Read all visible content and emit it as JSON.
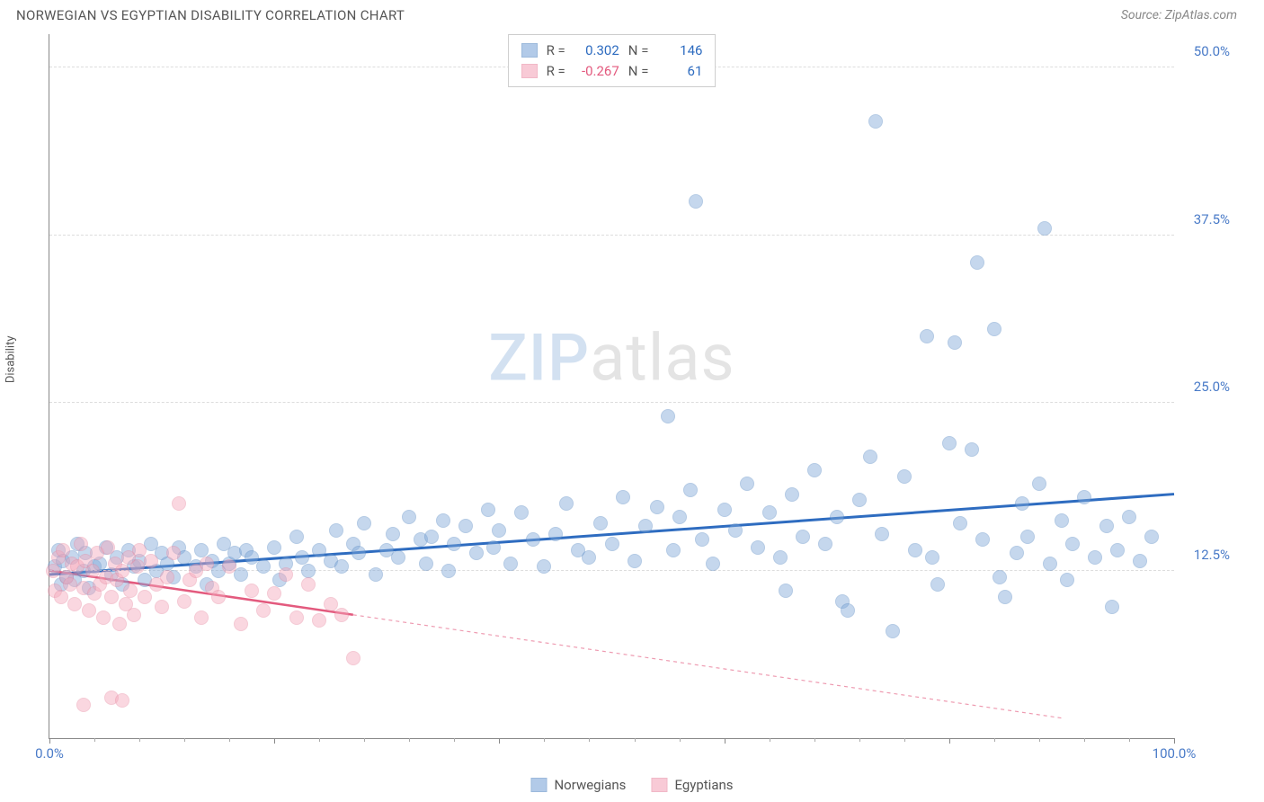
{
  "title": "NORWEGIAN VS EGYPTIAN DISABILITY CORRELATION CHART",
  "source": "Source: ZipAtlas.com",
  "y_axis_label": "Disability",
  "watermark": {
    "part1": "ZIP",
    "part2": "atlas"
  },
  "chart": {
    "type": "scatter",
    "background_color": "#ffffff",
    "grid_color": "#dddddd",
    "axis_color": "#888888",
    "xlim": [
      0,
      100
    ],
    "ylim": [
      0,
      52.5
    ],
    "x_ticks_major": [
      0,
      20,
      40,
      60,
      80,
      100
    ],
    "x_tick_labels": {
      "0": "0.0%",
      "100": "100.0%"
    },
    "x_tick_label_color": "#4a7bc8",
    "y_ticks": [
      12.5,
      25.0,
      37.5,
      50.0
    ],
    "y_tick_labels": [
      "12.5%",
      "25.0%",
      "37.5%",
      "50.0%"
    ],
    "y_tick_label_color": "#4a7bc8",
    "marker_radius": 8,
    "marker_fill_opacity": 0.45,
    "marker_stroke_opacity": 0.9,
    "marker_stroke_width": 1.2
  },
  "series": [
    {
      "name": "Norwegians",
      "color": "#7fa8d9",
      "stroke": "#5b8bc4",
      "trend_color": "#2e6cc0",
      "trend_width": 3,
      "trend_solid_until_x": 100,
      "R": "0.302",
      "N": "146",
      "stat_color": "#2e6cc0",
      "trend": {
        "x1": 0,
        "y1": 12.2,
        "x2": 100,
        "y2": 18.2
      },
      "points": [
        [
          0.5,
          12.8
        ],
        [
          0.8,
          14.0
        ],
        [
          1.0,
          11.5
        ],
        [
          1.2,
          13.2
        ],
        [
          1.5,
          12.0
        ],
        [
          2.0,
          13.5
        ],
        [
          2.2,
          11.8
        ],
        [
          2.5,
          14.5
        ],
        [
          3.0,
          12.5
        ],
        [
          3.2,
          13.8
        ],
        [
          3.5,
          11.2
        ],
        [
          4.0,
          12.8
        ],
        [
          4.5,
          13.0
        ],
        [
          5.0,
          14.2
        ],
        [
          5.5,
          12.2
        ],
        [
          6.0,
          13.5
        ],
        [
          6.5,
          11.5
        ],
        [
          7.0,
          14.0
        ],
        [
          7.5,
          12.8
        ],
        [
          8.0,
          13.2
        ],
        [
          8.5,
          11.8
        ],
        [
          9.0,
          14.5
        ],
        [
          9.5,
          12.5
        ],
        [
          10,
          13.8
        ],
        [
          10.5,
          13.0
        ],
        [
          11,
          12.0
        ],
        [
          11.5,
          14.2
        ],
        [
          12,
          13.5
        ],
        [
          13,
          12.8
        ],
        [
          13.5,
          14.0
        ],
        [
          14,
          11.5
        ],
        [
          14.5,
          13.2
        ],
        [
          15,
          12.5
        ],
        [
          15.5,
          14.5
        ],
        [
          16,
          13.0
        ],
        [
          16.5,
          13.8
        ],
        [
          17,
          12.2
        ],
        [
          17.5,
          14.0
        ],
        [
          18,
          13.5
        ],
        [
          19,
          12.8
        ],
        [
          20,
          14.2
        ],
        [
          20.5,
          11.8
        ],
        [
          21,
          13.0
        ],
        [
          22,
          15.0
        ],
        [
          22.5,
          13.5
        ],
        [
          23,
          12.5
        ],
        [
          24,
          14.0
        ],
        [
          25,
          13.2
        ],
        [
          25.5,
          15.5
        ],
        [
          26,
          12.8
        ],
        [
          27,
          14.5
        ],
        [
          27.5,
          13.8
        ],
        [
          28,
          16.0
        ],
        [
          29,
          12.2
        ],
        [
          30,
          14.0
        ],
        [
          30.5,
          15.2
        ],
        [
          31,
          13.5
        ],
        [
          32,
          16.5
        ],
        [
          33,
          14.8
        ],
        [
          33.5,
          13.0
        ],
        [
          34,
          15.0
        ],
        [
          35,
          16.2
        ],
        [
          35.5,
          12.5
        ],
        [
          36,
          14.5
        ],
        [
          37,
          15.8
        ],
        [
          38,
          13.8
        ],
        [
          39,
          17.0
        ],
        [
          39.5,
          14.2
        ],
        [
          40,
          15.5
        ],
        [
          41,
          13.0
        ],
        [
          42,
          16.8
        ],
        [
          43,
          14.8
        ],
        [
          44,
          12.8
        ],
        [
          45,
          15.2
        ],
        [
          46,
          17.5
        ],
        [
          47,
          14.0
        ],
        [
          48,
          13.5
        ],
        [
          49,
          16.0
        ],
        [
          50,
          14.5
        ],
        [
          51,
          18.0
        ],
        [
          52,
          13.2
        ],
        [
          53,
          15.8
        ],
        [
          54,
          17.2
        ],
        [
          55,
          24.0
        ],
        [
          55.5,
          14.0
        ],
        [
          56,
          16.5
        ],
        [
          57,
          18.5
        ],
        [
          57.5,
          40.0
        ],
        [
          58,
          14.8
        ],
        [
          59,
          13.0
        ],
        [
          60,
          17.0
        ],
        [
          61,
          15.5
        ],
        [
          62,
          19.0
        ],
        [
          63,
          14.2
        ],
        [
          64,
          16.8
        ],
        [
          65,
          13.5
        ],
        [
          65.5,
          11.0
        ],
        [
          66,
          18.2
        ],
        [
          67,
          15.0
        ],
        [
          68,
          20.0
        ],
        [
          69,
          14.5
        ],
        [
          70,
          16.5
        ],
        [
          70.5,
          10.2
        ],
        [
          71,
          9.5
        ],
        [
          72,
          17.8
        ],
        [
          73,
          21.0
        ],
        [
          73.5,
          46.0
        ],
        [
          74,
          15.2
        ],
        [
          75,
          8.0
        ],
        [
          76,
          19.5
        ],
        [
          77,
          14.0
        ],
        [
          78,
          30.0
        ],
        [
          78.5,
          13.5
        ],
        [
          79,
          11.5
        ],
        [
          80,
          22.0
        ],
        [
          80.5,
          29.5
        ],
        [
          81,
          16.0
        ],
        [
          82,
          21.5
        ],
        [
          82.5,
          35.5
        ],
        [
          83,
          14.8
        ],
        [
          84,
          30.5
        ],
        [
          84.5,
          12.0
        ],
        [
          85,
          10.5
        ],
        [
          86,
          13.8
        ],
        [
          86.5,
          17.5
        ],
        [
          87,
          15.0
        ],
        [
          88,
          19.0
        ],
        [
          88.5,
          38.0
        ],
        [
          89,
          13.0
        ],
        [
          90,
          16.2
        ],
        [
          90.5,
          11.8
        ],
        [
          91,
          14.5
        ],
        [
          92,
          18.0
        ],
        [
          93,
          13.5
        ],
        [
          94,
          15.8
        ],
        [
          94.5,
          9.8
        ],
        [
          95,
          14.0
        ],
        [
          96,
          16.5
        ],
        [
          97,
          13.2
        ],
        [
          98,
          15.0
        ]
      ]
    },
    {
      "name": "Egyptians",
      "color": "#f4a8bb",
      "stroke": "#e88aa2",
      "trend_color": "#e35a7e",
      "trend_width": 2.5,
      "trend_solid_until_x": 27,
      "R": "-0.267",
      "N": "61",
      "stat_color": "#e35a7e",
      "trend": {
        "x1": 0,
        "y1": 12.5,
        "x2": 90,
        "y2": 1.5
      },
      "points": [
        [
          0.3,
          12.5
        ],
        [
          0.5,
          11.0
        ],
        [
          0.8,
          13.5
        ],
        [
          1.0,
          10.5
        ],
        [
          1.2,
          14.0
        ],
        [
          1.5,
          12.0
        ],
        [
          1.8,
          11.5
        ],
        [
          2.0,
          13.0
        ],
        [
          2.2,
          10.0
        ],
        [
          2.5,
          12.8
        ],
        [
          2.8,
          14.5
        ],
        [
          3.0,
          11.2
        ],
        [
          3.2,
          13.2
        ],
        [
          3.5,
          9.5
        ],
        [
          3.8,
          12.5
        ],
        [
          4.0,
          10.8
        ],
        [
          4.2,
          13.8
        ],
        [
          4.5,
          11.5
        ],
        [
          4.8,
          9.0
        ],
        [
          5.0,
          12.0
        ],
        [
          5.2,
          14.2
        ],
        [
          5.5,
          10.5
        ],
        [
          5.8,
          13.0
        ],
        [
          6.0,
          11.8
        ],
        [
          6.2,
          8.5
        ],
        [
          6.5,
          12.5
        ],
        [
          6.8,
          10.0
        ],
        [
          7.0,
          13.5
        ],
        [
          7.2,
          11.0
        ],
        [
          7.5,
          9.2
        ],
        [
          7.8,
          12.8
        ],
        [
          8.0,
          14.0
        ],
        [
          8.5,
          10.5
        ],
        [
          9.0,
          13.2
        ],
        [
          9.5,
          11.5
        ],
        [
          10,
          9.8
        ],
        [
          10.5,
          12.0
        ],
        [
          11,
          13.8
        ],
        [
          11.5,
          17.5
        ],
        [
          12,
          10.2
        ],
        [
          12.5,
          11.8
        ],
        [
          13,
          12.5
        ],
        [
          13.5,
          9.0
        ],
        [
          14,
          13.0
        ],
        [
          14.5,
          11.2
        ],
        [
          15,
          10.5
        ],
        [
          16,
          12.8
        ],
        [
          17,
          8.5
        ],
        [
          18,
          11.0
        ],
        [
          19,
          9.5
        ],
        [
          20,
          10.8
        ],
        [
          21,
          12.2
        ],
        [
          22,
          9.0
        ],
        [
          23,
          11.5
        ],
        [
          24,
          8.8
        ],
        [
          25,
          10.0
        ],
        [
          26,
          9.2
        ],
        [
          27,
          6.0
        ],
        [
          3.0,
          2.5
        ],
        [
          5.5,
          3.0
        ],
        [
          6.5,
          2.8
        ]
      ]
    }
  ],
  "legend": {
    "items": [
      "Norwegians",
      "Egyptians"
    ]
  }
}
